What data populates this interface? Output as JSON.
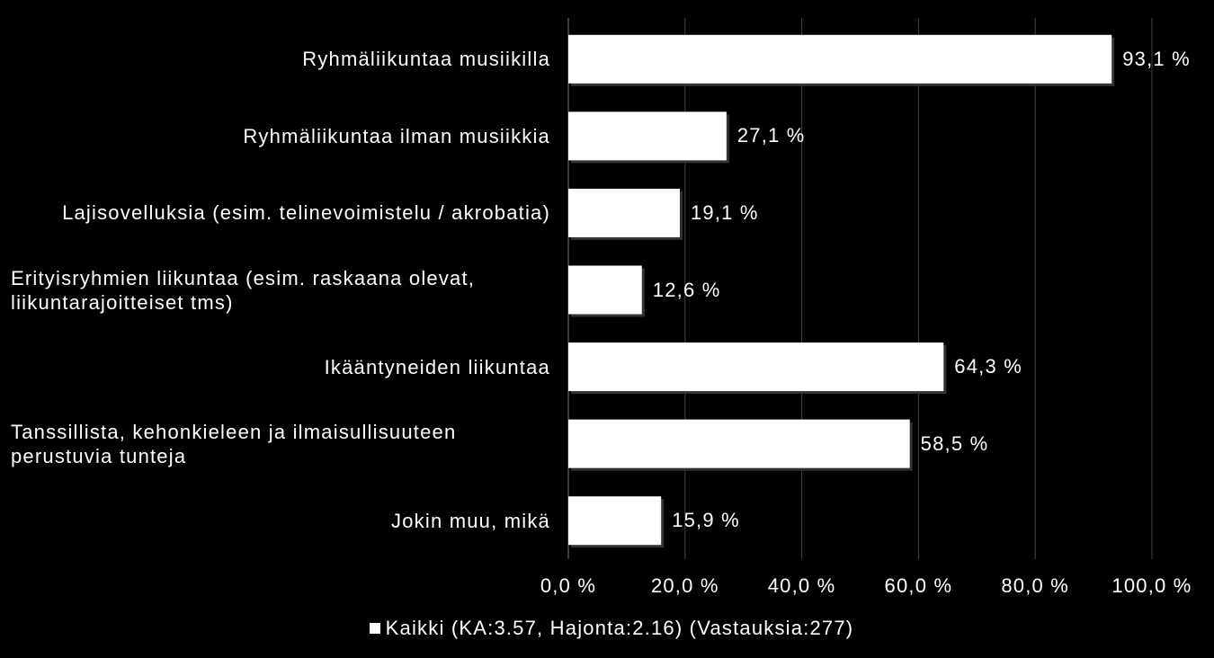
{
  "chart_data": {
    "type": "bar",
    "orientation": "horizontal",
    "categories": [
      "Ryhmäliikuntaa musiikilla",
      "Ryhmäliikuntaa ilman musiikkia",
      "Lajisovelluksia (esim. telinevoimistelu / akrobatia)",
      "Erityisryhmien liikuntaa (esim. raskaana olevat, liikuntarajoitteiset tms)",
      "Ikääntyneiden liikuntaa",
      "Tanssillista, kehonkieleen ja ilmaisullisuuteen perustuvia tunteja",
      "Jokin muu, mikä"
    ],
    "series": [
      {
        "name": "Kaikki (KA:3.57, Hajonta:2.16) (Vastauksia:277)",
        "color": "#ffffff",
        "values": [
          93.1,
          27.1,
          19.1,
          12.6,
          64.3,
          58.5,
          15.9
        ],
        "value_labels": [
          "93,1 %",
          "27,1 %",
          "19,1 %",
          "12,6 %",
          "64,3 %",
          "58,5 %",
          "15,9 %"
        ]
      }
    ],
    "xlim": [
      0,
      100
    ],
    "xticks": [
      {
        "value": 0,
        "label": "0,0 %"
      },
      {
        "value": 20,
        "label": "20,0 %"
      },
      {
        "value": 40,
        "label": "40,0 %"
      },
      {
        "value": 60,
        "label": "60,0 %"
      },
      {
        "value": 80,
        "label": "80,0 %"
      },
      {
        "value": 100,
        "label": "100,0 %"
      }
    ],
    "grid": true,
    "legend": "bottom"
  }
}
